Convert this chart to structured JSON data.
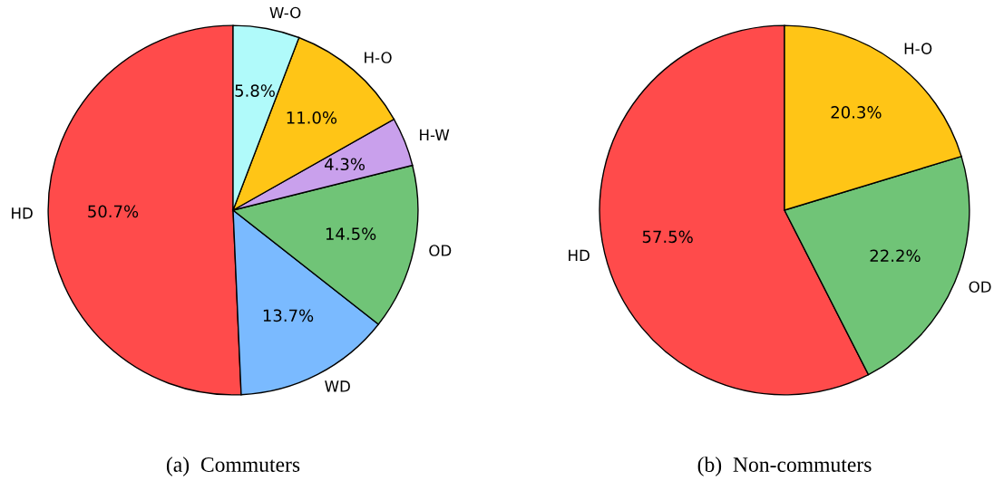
{
  "chart_data": [
    {
      "type": "pie",
      "title": "(a)  Commuters",
      "categories": [
        "HD",
        "WD",
        "OD",
        "H-W",
        "H-O",
        "W-O"
      ],
      "values": [
        50.7,
        13.7,
        14.5,
        4.3,
        11.0,
        5.8
      ],
      "value_labels": [
        "50.7%",
        "13.7%",
        "14.5%",
        "4.3%",
        "11.0%",
        "5.8%"
      ],
      "colors": [
        "#ff4b4b",
        "#7abaff",
        "#70c477",
        "#c9a0ec",
        "#ffc516",
        "#b0fafa"
      ]
    },
    {
      "type": "pie",
      "title": "(b)  Non-commuters",
      "categories": [
        "HD",
        "OD",
        "H-O"
      ],
      "values": [
        57.5,
        22.2,
        20.3
      ],
      "value_labels": [
        "57.5%",
        "22.2%",
        "20.3%"
      ],
      "colors": [
        "#ff4b4b",
        "#70c477",
        "#ffc516"
      ]
    }
  ]
}
